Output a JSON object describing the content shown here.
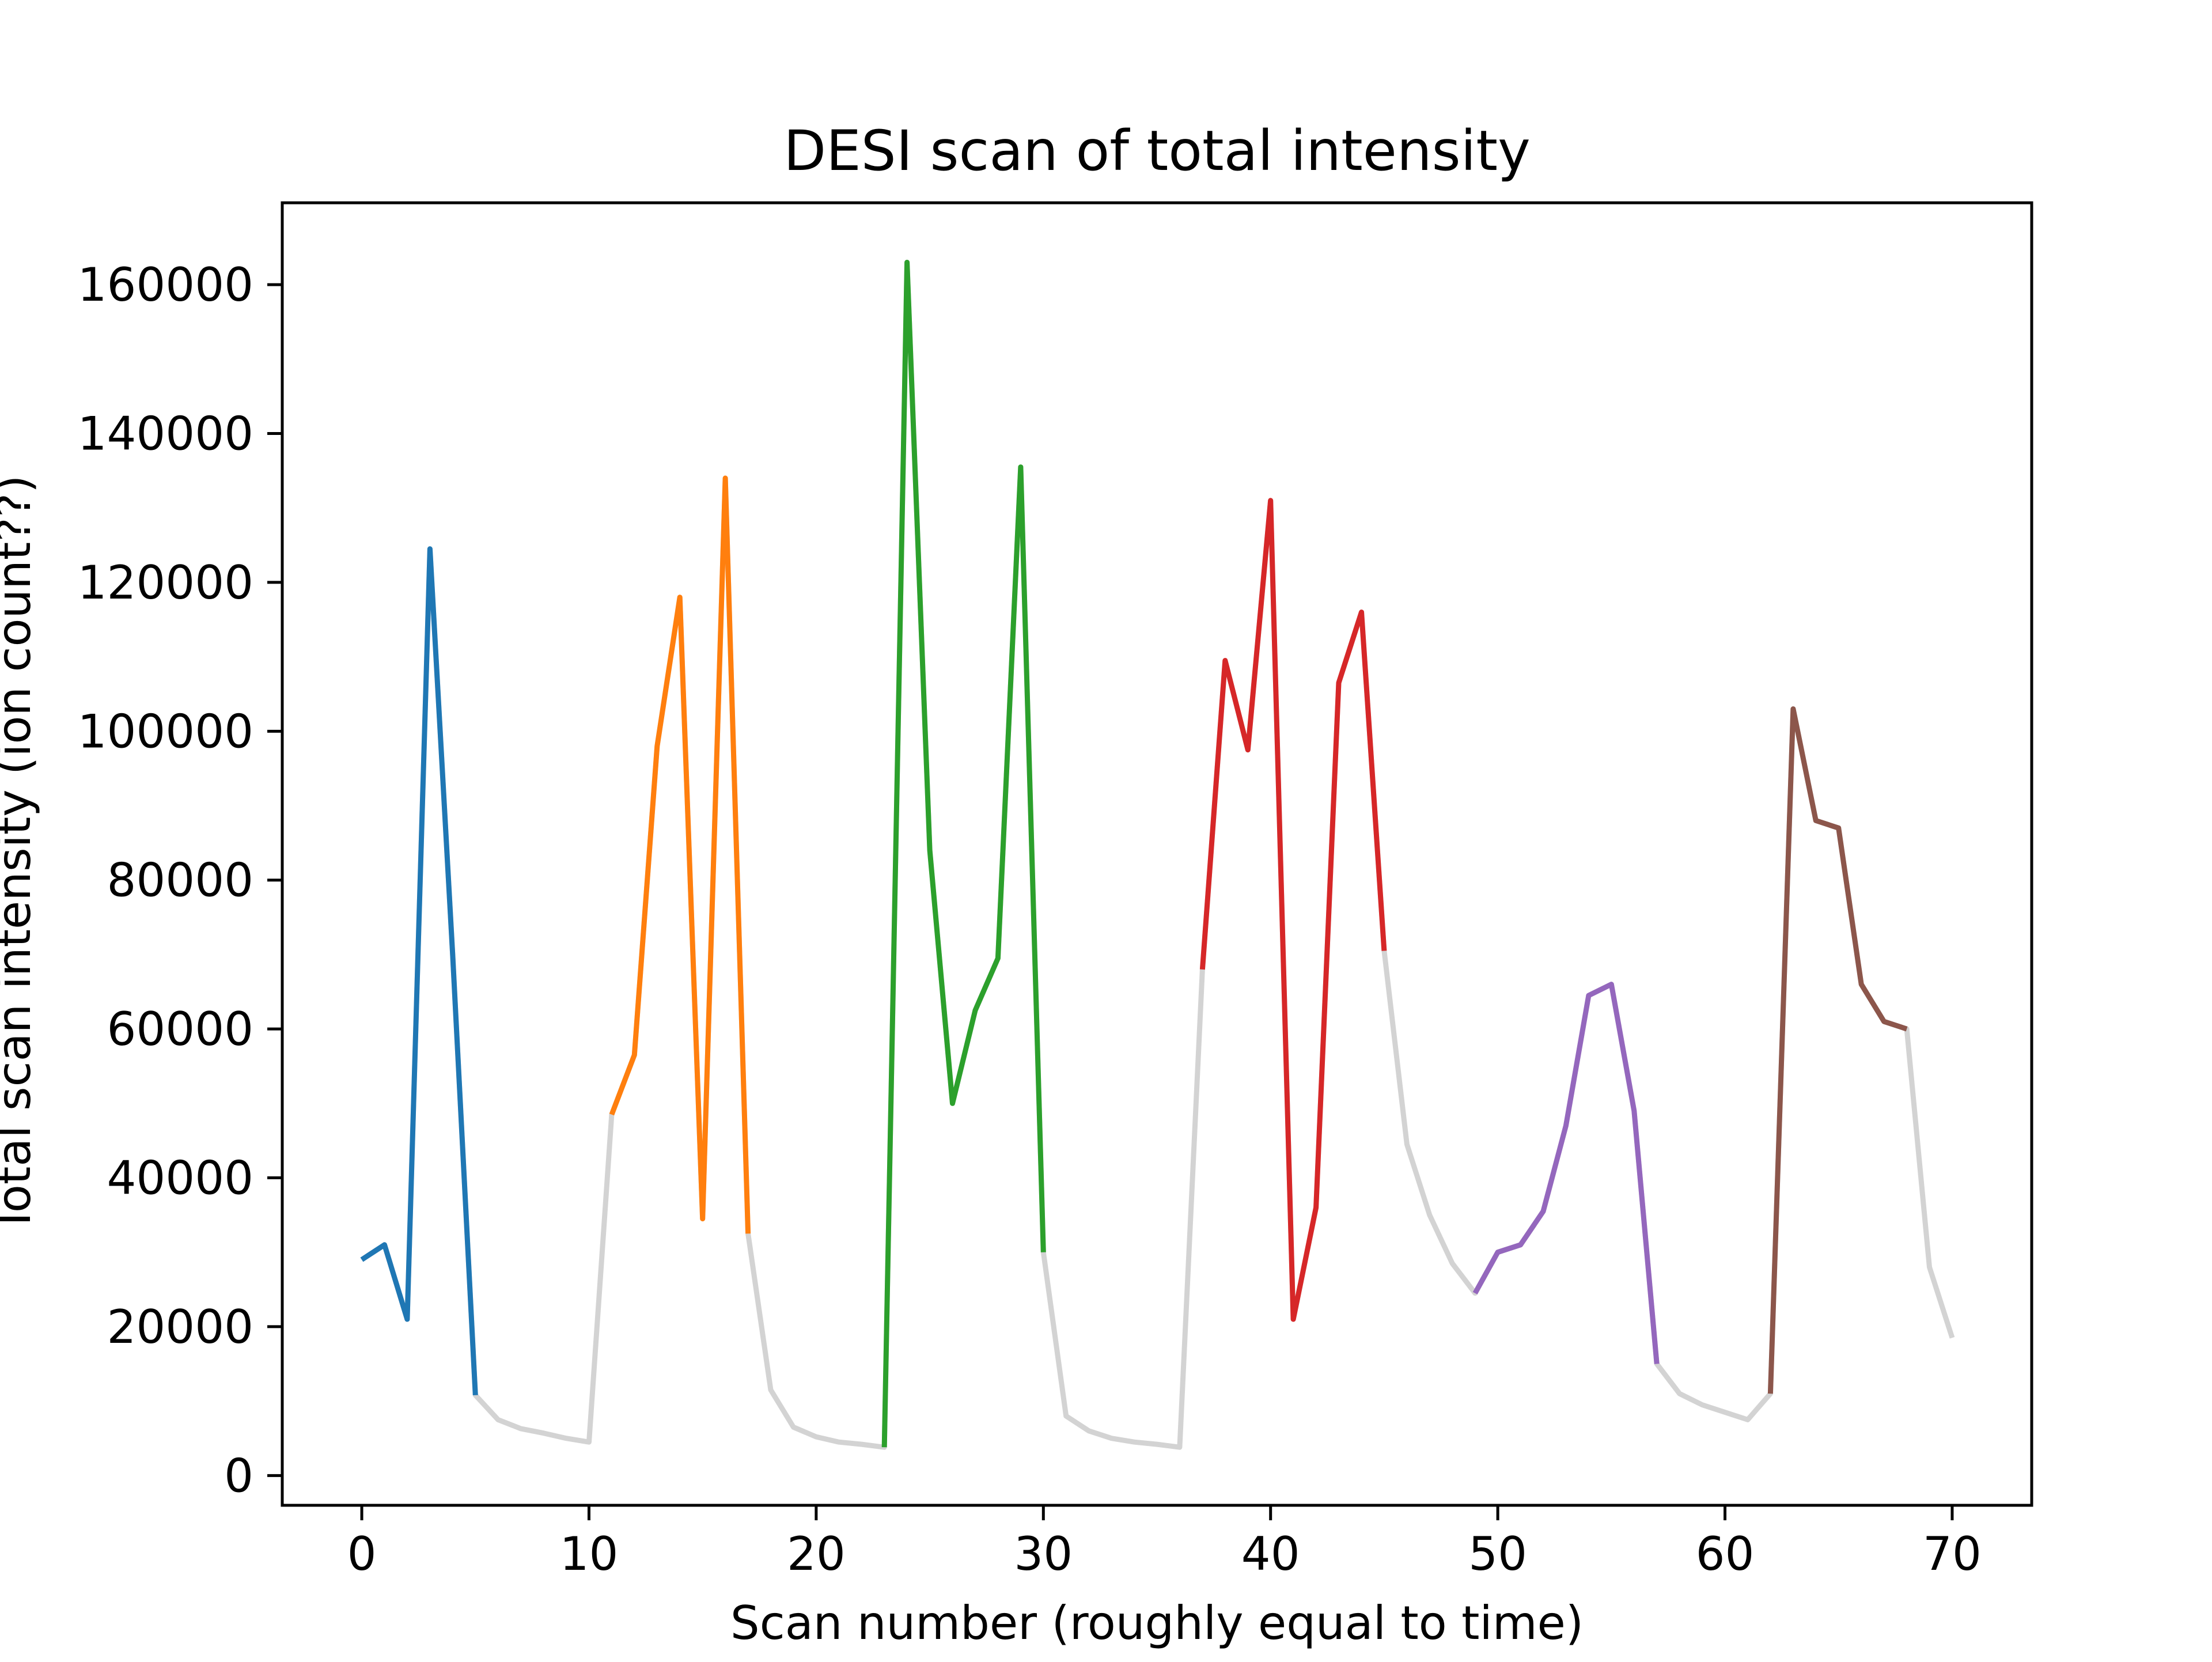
{
  "chart_data": {
    "type": "line",
    "title": "DESI scan of total intensity",
    "xlabel": "Scan number (roughly equal to time)",
    "ylabel": "Total scan intensity (ion count??)",
    "xlim": [
      -3.5,
      73.5
    ],
    "ylim": [
      -4000,
      171000
    ],
    "xticks": [
      0,
      10,
      20,
      30,
      40,
      50,
      60,
      70
    ],
    "yticks": [
      0,
      20000,
      40000,
      60000,
      80000,
      100000,
      120000,
      140000,
      160000
    ],
    "grid": false,
    "legend": "none",
    "background_series": {
      "color": "#d3d3d3",
      "x": [
        0,
        1,
        2,
        3,
        4,
        5,
        6,
        7,
        8,
        9,
        10,
        11,
        12,
        13,
        14,
        15,
        16,
        17,
        18,
        19,
        20,
        21,
        22,
        23,
        24,
        25,
        26,
        27,
        28,
        29,
        30,
        31,
        32,
        33,
        34,
        35,
        36,
        37,
        38,
        39,
        40,
        41,
        42,
        43,
        44,
        45,
        46,
        47,
        48,
        49,
        50,
        51,
        52,
        53,
        54,
        55,
        56,
        57,
        58,
        59,
        60,
        61,
        62,
        63,
        64,
        65,
        66,
        67,
        68,
        69,
        70
      ],
      "y": [
        29000,
        31000,
        21000,
        124500,
        70000,
        10800,
        7500,
        6300,
        5700,
        5000,
        4500,
        48500,
        56500,
        98000,
        118000,
        34500,
        134000,
        32500,
        11500,
        6500,
        5200,
        4500,
        4200,
        3800,
        163000,
        84000,
        50000,
        62500,
        69500,
        135500,
        30000,
        8000,
        6000,
        5000,
        4500,
        4200,
        3800,
        68000,
        109500,
        97500,
        131000,
        21000,
        36000,
        106500,
        116000,
        70500,
        44500,
        35000,
        28500,
        24500,
        30000,
        31000,
        35500,
        47000,
        64500,
        66000,
        49000,
        15000,
        11000,
        9500,
        8500,
        7500,
        11000,
        103000,
        88000,
        87000,
        66000,
        61000,
        60000,
        28000,
        18500
      ]
    },
    "series": [
      {
        "color": "#1f77b4",
        "x": [
          0,
          1,
          2,
          3,
          4,
          5
        ],
        "y": [
          29000,
          31000,
          21000,
          124500,
          70000,
          10800
        ]
      },
      {
        "color": "#ff7f0e",
        "x": [
          11,
          12,
          13,
          14,
          15,
          16,
          17
        ],
        "y": [
          48500,
          56500,
          98000,
          118000,
          34500,
          134000,
          32500
        ]
      },
      {
        "color": "#2ca02c",
        "x": [
          23,
          24,
          25,
          26,
          27,
          28,
          29,
          30
        ],
        "y": [
          3800,
          163000,
          84000,
          50000,
          62500,
          69500,
          135500,
          30000
        ]
      },
      {
        "color": "#d62728",
        "x": [
          37,
          38,
          39,
          40,
          41,
          42,
          43,
          44,
          45
        ],
        "y": [
          68000,
          109500,
          97500,
          131000,
          21000,
          36000,
          106500,
          116000,
          70500
        ]
      },
      {
        "color": "#9467bd",
        "x": [
          49,
          50,
          51,
          52,
          53,
          54,
          55,
          56,
          57
        ],
        "y": [
          24500,
          30000,
          31000,
          35500,
          47000,
          64500,
          66000,
          49000,
          15000
        ]
      },
      {
        "color": "#8c564b",
        "x": [
          62,
          63,
          64,
          65,
          66,
          67,
          68
        ],
        "y": [
          11000,
          103000,
          88000,
          87000,
          66000,
          61000,
          60000
        ]
      }
    ]
  }
}
